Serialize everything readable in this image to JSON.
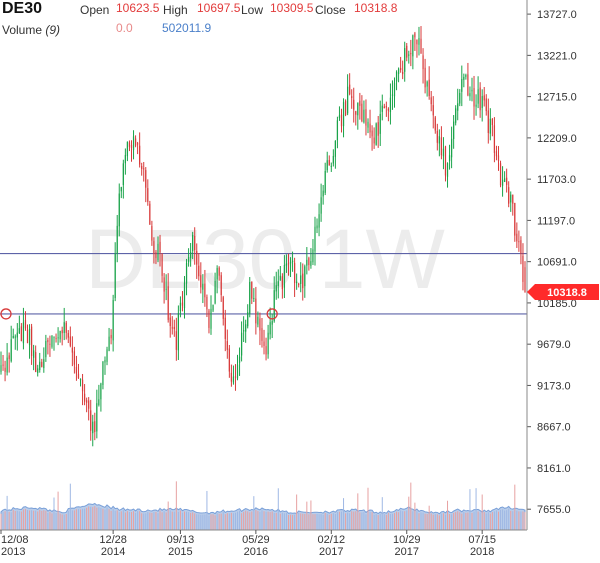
{
  "header": {
    "symbol": "DE30",
    "open_label": "Open",
    "open_value": "10623.5",
    "high_label": "High",
    "high_value": "10697.5",
    "low_label": "Low",
    "low_value": "10309.5",
    "close_label": "Close",
    "close_value": "10318.8",
    "volume_label": "Volume",
    "volume_period": "(9)",
    "volume_value_1": "0.0",
    "volume_value_2": "502011.9"
  },
  "watermark": "DE30 1W",
  "current_price_label": "10318.8",
  "colors": {
    "up": "#1aa34a",
    "down": "#d83a3a",
    "level_line": "#5e63a8",
    "price_tag": "#ff2a2a",
    "volume_area": "#b9cdea"
  },
  "chart_data": {
    "type": "candlestick",
    "timeframe": "1W",
    "ylim": [
      7400,
      13900
    ],
    "y_ticks": [
      "13727.0",
      "13221.0",
      "12715.0",
      "12209.0",
      "11703.0",
      "11197.0",
      "10691.0",
      "10185.0",
      "9679.0",
      "9173.0",
      "8667.0",
      "8161.0",
      "7655.0"
    ],
    "x_ticks": [
      {
        "label": "12/08",
        "year": "2013",
        "week": 0
      },
      {
        "label": "12/28",
        "year": "2014",
        "week": 55
      },
      {
        "label": "09/13",
        "year": "2015",
        "week": 88
      },
      {
        "label": "05/29",
        "year": "2016",
        "week": 125
      },
      {
        "label": "02/12",
        "year": "2017",
        "week": 162
      },
      {
        "label": "10/29",
        "year": "2017",
        "week": 199
      },
      {
        "label": "07/15",
        "year": "2018",
        "week": 236
      }
    ],
    "horizontal_levels": [
      10790,
      10050
    ],
    "level_markers": [
      {
        "week": 2,
        "price": 10050
      },
      {
        "week": 133,
        "price": 10050
      }
    ],
    "current_price": 10318.8,
    "last_candle": {
      "open": 10623.5,
      "high": 10697.5,
      "low": 10309.5,
      "close": 10318.8
    },
    "close_path": [
      [
        0,
        9350
      ],
      [
        6,
        9700
      ],
      [
        12,
        9900
      ],
      [
        18,
        9400
      ],
      [
        24,
        9800
      ],
      [
        30,
        9950
      ],
      [
        36,
        9500
      ],
      [
        42,
        8900
      ],
      [
        46,
        8600
      ],
      [
        50,
        9450
      ],
      [
        54,
        9900
      ],
      [
        57,
        11200
      ],
      [
        62,
        12300
      ],
      [
        66,
        12100
      ],
      [
        70,
        11700
      ],
      [
        74,
        11000
      ],
      [
        78,
        10700
      ],
      [
        82,
        10100
      ],
      [
        86,
        9750
      ],
      [
        90,
        10400
      ],
      [
        94,
        10900
      ],
      [
        98,
        10400
      ],
      [
        102,
        9900
      ],
      [
        106,
        10700
      ],
      [
        110,
        9600
      ],
      [
        114,
        9200
      ],
      [
        118,
        9800
      ],
      [
        122,
        10300
      ],
      [
        126,
        10000
      ],
      [
        130,
        9650
      ],
      [
        134,
        10250
      ],
      [
        138,
        10500
      ],
      [
        142,
        10650
      ],
      [
        146,
        10300
      ],
      [
        150,
        10600
      ],
      [
        154,
        11000
      ],
      [
        158,
        11650
      ],
      [
        162,
        11950
      ],
      [
        166,
        12400
      ],
      [
        170,
        12700
      ],
      [
        174,
        12550
      ],
      [
        178,
        12450
      ],
      [
        182,
        12150
      ],
      [
        186,
        12400
      ],
      [
        190,
        12650
      ],
      [
        194,
        12950
      ],
      [
        198,
        13200
      ],
      [
        202,
        13420
      ],
      [
        206,
        13300
      ],
      [
        210,
        12600
      ],
      [
        214,
        12250
      ],
      [
        218,
        11850
      ],
      [
        222,
        12350
      ],
      [
        226,
        13050
      ],
      [
        230,
        12650
      ],
      [
        234,
        12750
      ],
      [
        238,
        12450
      ],
      [
        242,
        12150
      ],
      [
        246,
        11650
      ],
      [
        250,
        11400
      ],
      [
        254,
        10900
      ],
      [
        257,
        10318.8
      ]
    ],
    "volume_ylim": [
      0,
      120
    ],
    "volume_path": [
      [
        0,
        38
      ],
      [
        15,
        44
      ],
      [
        30,
        35
      ],
      [
        45,
        52
      ],
      [
        58,
        40
      ],
      [
        72,
        38
      ],
      [
        86,
        40
      ],
      [
        100,
        33
      ],
      [
        115,
        38
      ],
      [
        128,
        42
      ],
      [
        142,
        34
      ],
      [
        158,
        35
      ],
      [
        172,
        38
      ],
      [
        188,
        34
      ],
      [
        200,
        42
      ],
      [
        212,
        33
      ],
      [
        225,
        38
      ],
      [
        238,
        37
      ],
      [
        250,
        44
      ],
      [
        257,
        38
      ]
    ]
  }
}
